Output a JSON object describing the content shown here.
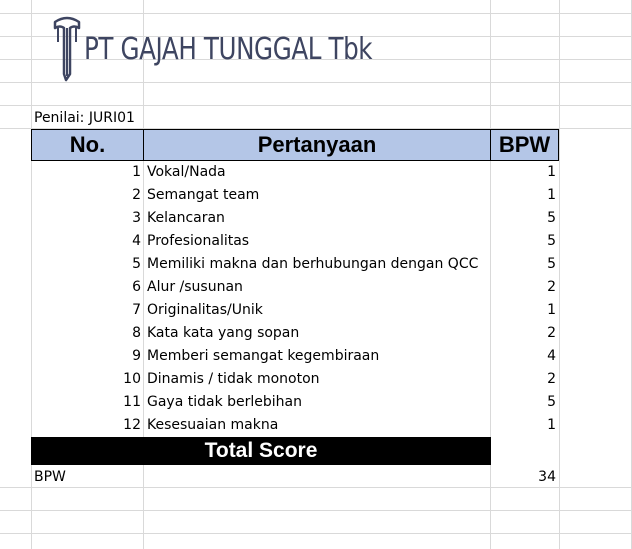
{
  "logo": {
    "text": "PT GAJAH TUNGGAL Tbk",
    "icon": "elephant-logo-icon",
    "color": "#3e4561"
  },
  "penilai_label": "Penilai: JURI01",
  "table": {
    "headers": {
      "no": "No.",
      "question": "Pertanyaan",
      "score": "BPW"
    },
    "header_bg": "#b4c6e7",
    "rows": [
      {
        "no": "1",
        "question": "Vokal/Nada",
        "score": "1"
      },
      {
        "no": "2",
        "question": "Semangat team",
        "score": "1"
      },
      {
        "no": "3",
        "question": "Kelancaran",
        "score": "5"
      },
      {
        "no": "4",
        "question": "Profesionalitas",
        "score": "5"
      },
      {
        "no": "5",
        "question": "Memiliki makna dan berhubungan dengan QCC",
        "score": "5"
      },
      {
        "no": "6",
        "question": "Alur /susunan",
        "score": "2"
      },
      {
        "no": "7",
        "question": "Originalitas/Unik",
        "score": "1"
      },
      {
        "no": "8",
        "question": "Kata kata yang sopan",
        "score": "2"
      },
      {
        "no": "9",
        "question": "Memberi semangat kegembiraan",
        "score": "4"
      },
      {
        "no": "10",
        "question": "Dinamis / tidak monoton",
        "score": "2"
      },
      {
        "no": "11",
        "question": "Gaya tidak berlebihan",
        "score": "5"
      },
      {
        "no": "12",
        "question": "Kesesuaian makna",
        "score": "1"
      }
    ],
    "total_label": "Total Score"
  },
  "summary": {
    "label": "BPW",
    "value": "34"
  }
}
